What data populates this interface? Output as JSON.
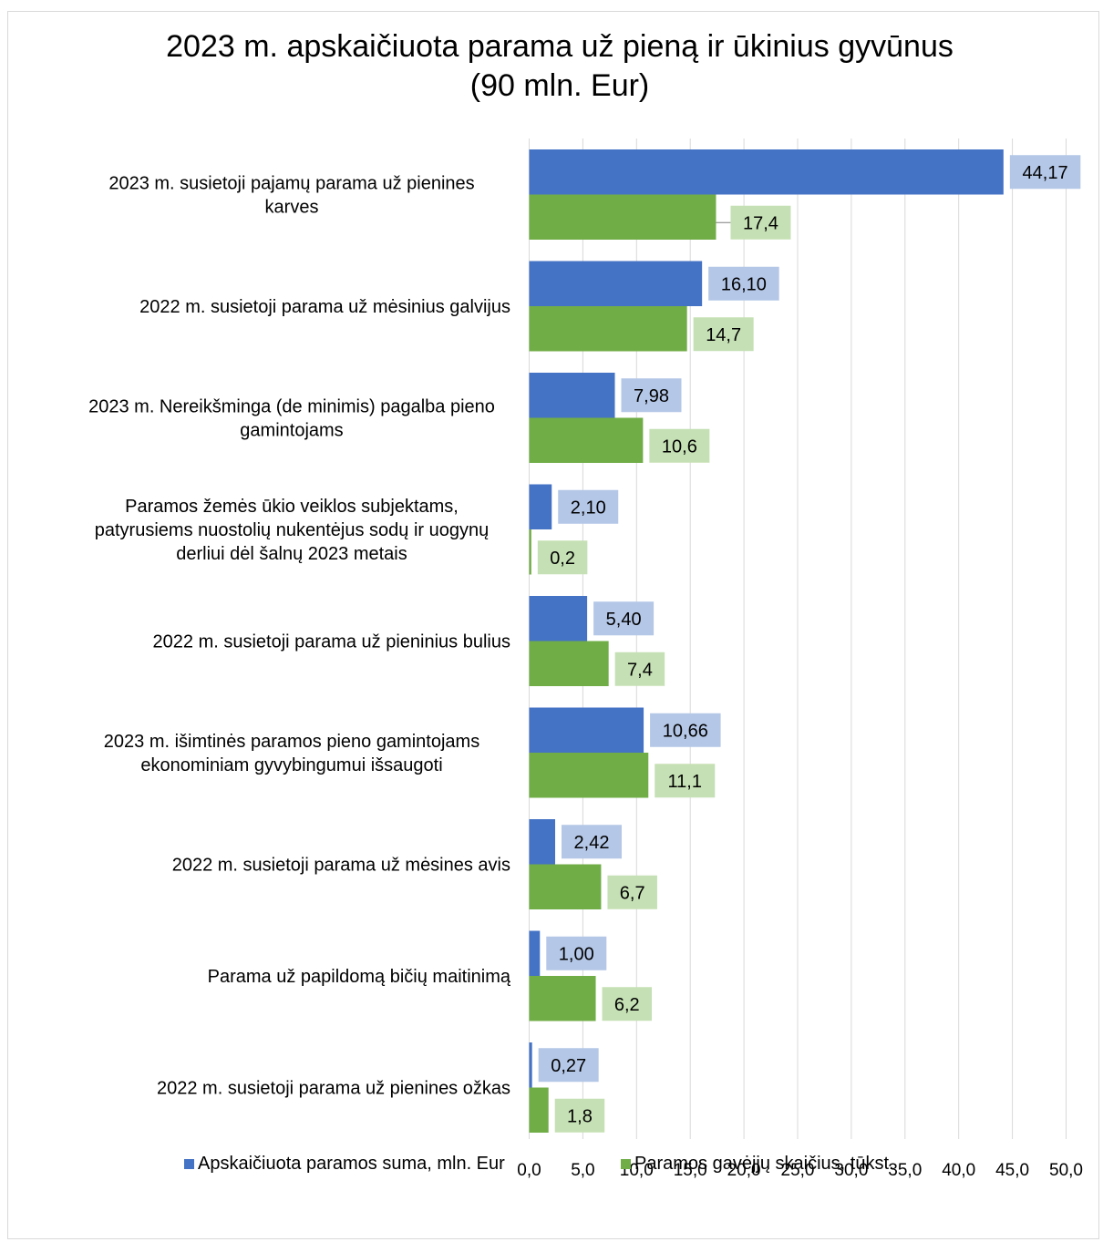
{
  "chart_data": {
    "type": "bar",
    "orientation": "horizontal",
    "title": "2023 m. apskaičiuota parama už pieną ir ūkinius gyvūnus\n(90 mln. Eur)",
    "categories": [
      "2023 m. susietoji pajamų parama už pienines\nkarves",
      "2022 m. susietoji parama už mėsinius galvijus",
      "2023 m. Nereikšminga (de minimis) pagalba pieno\ngamintojams",
      "Paramos žemės ūkio veiklos subjektams,\npatyrusiems nuostolių nukentėjus sodų ir uogynų\nderliui dėl šalnų 2023 metais",
      "2022 m. susietoji parama už pieninius bulius",
      "2023 m. išimtinės paramos pieno gamintojams\nekonominiam gyvybingumui išsaugoti",
      "2022 m. susietoji parama už mėsines avis",
      "Parama už papildomą bičių maitinimą",
      "2022 m. susietoji parama už pienines ožkas"
    ],
    "series": [
      {
        "name": "Apskaičiuota paramos suma, mln. Eur",
        "color": "#4472c4",
        "label_bg": "#b4c7e7",
        "values": [
          44.17,
          16.1,
          7.98,
          2.1,
          5.4,
          10.66,
          2.42,
          1.0,
          0.27
        ],
        "labels": [
          "44,17",
          "16,10",
          "7,98",
          "2,10",
          "5,40",
          "10,66",
          "2,42",
          "1,00",
          "0,27"
        ]
      },
      {
        "name": "Paramos gavėjjų skaičius, tūkst.",
        "color": "#70ad47",
        "label_bg": "#c5e0b4",
        "values": [
          17.4,
          14.7,
          10.6,
          0.2,
          7.4,
          11.1,
          6.7,
          6.2,
          1.8
        ],
        "labels": [
          "17,4",
          "14,7",
          "10,6",
          "0,2",
          "7,4",
          "11,1",
          "6,7",
          "6,2",
          "1,8"
        ]
      }
    ],
    "xlim": [
      0,
      50
    ],
    "xticks": [
      "0,0",
      "5,0",
      "10,0",
      "15,0",
      "20,0",
      "25,0",
      "30,0",
      "35,0",
      "40,0",
      "45,0",
      "50,0"
    ],
    "grid": true,
    "legend_position": "bottom"
  }
}
